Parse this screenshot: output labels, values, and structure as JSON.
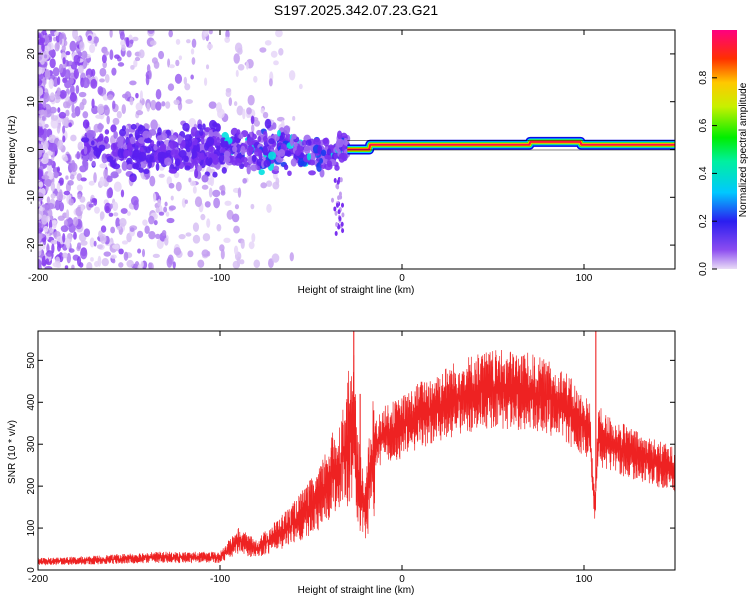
{
  "page": {
    "title": "S197.2025.342.07.23.G21"
  },
  "chart_data": [
    {
      "type": "heatmap",
      "title": "S197.2025.342.07.23.G21",
      "xlabel": "Height of straight line (km)",
      "ylabel": "Frequency (Hz)",
      "xlim": [
        -200,
        150
      ],
      "ylim": [
        -25,
        25
      ],
      "x_ticks": [
        -200,
        -100,
        0,
        100
      ],
      "y_ticks": [
        -20,
        -10,
        0,
        10,
        20
      ],
      "x_tick_labels": [
        "-200",
        "-100",
        "0",
        "100"
      ],
      "y_tick_labels": [
        "-20",
        "-10",
        "0",
        "10",
        "20"
      ],
      "ridge_segments": [
        {
          "x_start": -30,
          "x_end": -18,
          "frequency": 0.0
        },
        {
          "x_start": -18,
          "x_end": 70,
          "frequency": 1.0
        },
        {
          "x_start": 70,
          "x_end": 98,
          "frequency": 1.6
        },
        {
          "x_start": 98,
          "x_end": 150,
          "frequency": 1.0
        }
      ],
      "colorbar": {
        "label": "Normalized spectral amplitude",
        "range": [
          0,
          1
        ],
        "ticks": [
          0.0,
          0.2,
          0.4,
          0.6,
          0.8
        ],
        "tick_labels": [
          "0.0",
          "0.2",
          "0.4",
          "0.6",
          "0.8"
        ]
      }
    },
    {
      "type": "line",
      "xlabel": "Height of straight line (km)",
      "ylabel": "SNR (10 * v/v)",
      "xlim": [
        -200,
        150
      ],
      "ylim": [
        0,
        570
      ],
      "x_ticks": [
        -200,
        -100,
        0,
        100
      ],
      "y_ticks": [
        0,
        100,
        200,
        300,
        400,
        500
      ],
      "x_tick_labels": [
        "-200",
        "-100",
        "0",
        "100"
      ],
      "y_tick_labels": [
        "0",
        "100",
        "200",
        "300",
        "400",
        "500"
      ],
      "series": [
        {
          "name": "SNR",
          "color": "#ee2222",
          "x": [
            -200,
            -180,
            -160,
            -140,
            -120,
            -100,
            -90,
            -80,
            -70,
            -60,
            -50,
            -45,
            -40,
            -35,
            -30,
            -28,
            -27,
            -26,
            -25,
            -20,
            -15,
            -10,
            0,
            10,
            20,
            30,
            40,
            50,
            60,
            70,
            80,
            90,
            100,
            103,
            105,
            106,
            108,
            110,
            120,
            130,
            140,
            150
          ],
          "values": [
            20,
            22,
            25,
            30,
            30,
            30,
            70,
            50,
            80,
            110,
            150,
            170,
            220,
            240,
            300,
            320,
            350,
            320,
            220,
            150,
            290,
            320,
            340,
            370,
            390,
            410,
            425,
            430,
            430,
            425,
            410,
            390,
            340,
            340,
            200,
            150,
            330,
            310,
            290,
            270,
            255,
            240
          ]
        }
      ],
      "spikes": [
        {
          "x": -26.5,
          "value": 570
        },
        {
          "x": -23,
          "value": 420
        },
        {
          "x": 106.5,
          "value": 570
        },
        {
          "x": 106.0,
          "value": 140
        }
      ]
    }
  ]
}
